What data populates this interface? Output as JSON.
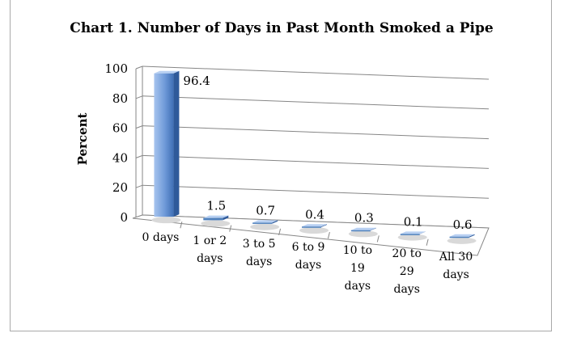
{
  "chart_data": {
    "type": "bar",
    "title": "Chart 1. Number of Days in Past Month Smoked a Pipe",
    "xlabel": "",
    "ylabel": "Percent",
    "ylim": [
      0,
      100
    ],
    "yticks": [
      "0",
      "20",
      "40",
      "60",
      "80",
      "100"
    ],
    "categories": [
      "0 days",
      "1 or 2 days",
      "3 to 5 days",
      "6 to 9 days",
      "10 to 19 days",
      "20 to 29 days",
      "All 30 days"
    ],
    "category_lines": [
      [
        "0 days"
      ],
      [
        "1 or 2",
        "days"
      ],
      [
        "3 to 5",
        "days"
      ],
      [
        "6 to 9",
        "days"
      ],
      [
        "10 to",
        "19",
        "days"
      ],
      [
        "20 to",
        "29",
        "days"
      ],
      [
        "All 30",
        "days"
      ]
    ],
    "values": [
      96.4,
      1.5,
      0.7,
      0.4,
      0.3,
      0.1,
      0.6
    ],
    "value_labels": [
      "96.4",
      "1.5",
      "0.7",
      "0.4",
      "0.3",
      "0.1",
      "0.6"
    ],
    "grid": true,
    "bar_color": "#4f81bd",
    "bar_highlight": "#a7c4ee"
  }
}
